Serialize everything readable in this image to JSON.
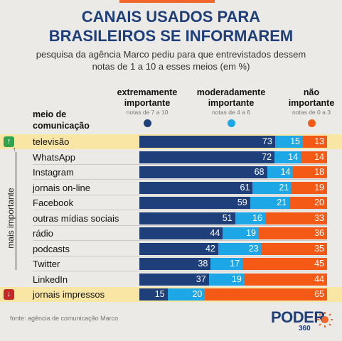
{
  "header": {
    "title_line1": "CANAIS USADOS PARA",
    "title_line2": "BRASILEIROS SE INFORMAREM",
    "subtitle_line1": "pesquisa da agência Marco pediu para que entrevistados dessem",
    "subtitle_line2": "notas de 1 a 10 a esses meios (em %)"
  },
  "columns": {
    "media_label_line1": "meio de",
    "media_label_line2": "comunicação",
    "extreme": {
      "line1": "extremamente",
      "line2": "importante",
      "note": "notas de 7 a 10"
    },
    "moderate": {
      "line1": "moderadamente",
      "line2": "importante",
      "note": "notas de 4 a 6"
    },
    "not": {
      "line1": "não",
      "line2": "importante",
      "note": "notas de 0 a 3"
    }
  },
  "colors": {
    "extreme": "#1f3f7a",
    "moderate": "#1ea7e6",
    "not": "#f45a16",
    "highlight": "#f9e6a4",
    "up": "#2ea44f",
    "down": "#c62828"
  },
  "side": {
    "label": "mais importante",
    "up_icon": "arrow-up-icon",
    "down_icon": "arrow-down-icon"
  },
  "chart_data": {
    "type": "bar",
    "stacked": true,
    "orientation": "horizontal",
    "title": "CANAIS USADOS PARA BRASILEIROS SE INFORMAREM",
    "subtitle": "pesquisa da agência Marco pediu para que entrevistados dessem notas de 1 a 10 a esses meios (em %)",
    "categories": [
      "televisão",
      "WhatsApp",
      "Instagram",
      "jornais on-line",
      "Facebook",
      "outras mídias sociais",
      "rádio",
      "podcasts",
      "Twitter",
      "LinkedIn",
      "jornais impressos"
    ],
    "highlighted": [
      "televisão",
      "jornais impressos"
    ],
    "series": [
      {
        "name": "extremamente importante",
        "values": [
          73,
          72,
          68,
          61,
          59,
          51,
          44,
          42,
          38,
          37,
          15
        ]
      },
      {
        "name": "moderadamente importante",
        "values": [
          15,
          14,
          14,
          21,
          21,
          16,
          19,
          23,
          17,
          19,
          20
        ]
      },
      {
        "name": "não importante",
        "values": [
          13,
          14,
          18,
          19,
          20,
          33,
          36,
          35,
          45,
          44,
          65
        ]
      }
    ]
  },
  "footer": {
    "source": "fonte: agência de comunicação Marco",
    "logo_main": "PODER",
    "logo_num": "360"
  }
}
